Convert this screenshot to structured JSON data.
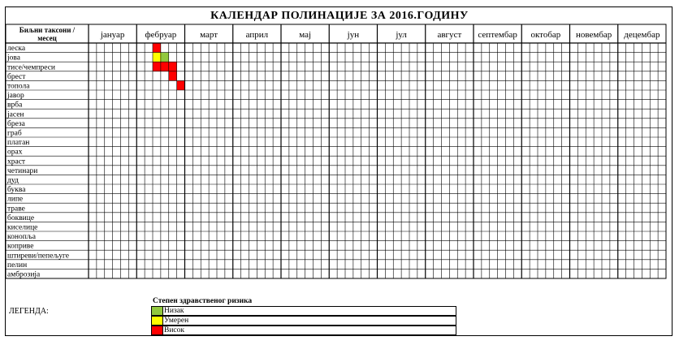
{
  "chart_data": {
    "type": "heatmap",
    "title": "КАЛЕНДАР ПОЛИНАЦИЈЕ ЗА  2016.ГОДИНУ",
    "corner_header": [
      "Биљни таксони /",
      "месец"
    ],
    "months": [
      "јануар",
      "фебруар",
      "март",
      "април",
      "мај",
      "јун",
      "јул",
      "август",
      "септембар",
      "октобар",
      "новембар",
      "децембар"
    ],
    "rows": [
      {
        "taxon": "леска",
        "cells": "00000000300000000000000000000000000000000000000000000000000000000000000"
      },
      {
        "taxon": "јова",
        "cells": "00000000210000000000000000000000000000000000000000000000000000000000000"
      },
      {
        "taxon": "тисе/чемпреси",
        "cells": "00000000333000000000000000000000000000000000000000000000000000000000000"
      },
      {
        "taxon": "брест",
        "cells": "00000000003000000000000000000000000000000000000000000000000000000000000"
      },
      {
        "taxon": "топола",
        "cells": "00000000000300000000000000000000000000000000000000000000000000000000000"
      },
      {
        "taxon": "јавор",
        "cells": "00000000000000000000000000000000000000000000000000000000000000000000000"
      },
      {
        "taxon": "врба",
        "cells": "00000000000000000000000000000000000000000000000000000000000000000000000"
      },
      {
        "taxon": "јасен",
        "cells": "00000000000000000000000000000000000000000000000000000000000000000000000"
      },
      {
        "taxon": "бреза",
        "cells": "00000000000000000000000000000000000000000000000000000000000000000000000"
      },
      {
        "taxon": "граб",
        "cells": "00000000000000000000000000000000000000000000000000000000000000000000000"
      },
      {
        "taxon": "платан",
        "cells": "00000000000000000000000000000000000000000000000000000000000000000000000"
      },
      {
        "taxon": "орах",
        "cells": "00000000000000000000000000000000000000000000000000000000000000000000000"
      },
      {
        "taxon": "храст",
        "cells": "00000000000000000000000000000000000000000000000000000000000000000000000"
      },
      {
        "taxon": "четинари",
        "cells": "00000000000000000000000000000000000000000000000000000000000000000000000"
      },
      {
        "taxon": "дуд",
        "cells": "00000000000000000000000000000000000000000000000000000000000000000000000"
      },
      {
        "taxon": "буква",
        "cells": "00000000000000000000000000000000000000000000000000000000000000000000000"
      },
      {
        "taxon": "липе",
        "cells": "00000000000000000000000000000000000000000000000000000000000000000000000"
      },
      {
        "taxon": "траве",
        "cells": "00000000000000000000000000000000000000000000000000000000000000000000000"
      },
      {
        "taxon": "боквице",
        "cells": "00000000000000000000000000000000000000000000000000000000000000000000000"
      },
      {
        "taxon": "киселице",
        "cells": "00000000000000000000000000000000000000000000000000000000000000000000000"
      },
      {
        "taxon": "конопља",
        "cells": "00000000000000000000000000000000000000000000000000000000000000000000000"
      },
      {
        "taxon": "коприве",
        "cells": "00000000000000000000000000000000000000000000000000000000000000000000000"
      },
      {
        "taxon": "штиреви/пепељуге",
        "cells": "00000000000000000000000000000000000000000000000000000000000000000000000"
      },
      {
        "taxon": "пелин",
        "cells": "00000000000000000000000000000000000000000000000000000000000000000000000"
      },
      {
        "taxon": "амброзија",
        "cells": "00000000000000000000000000000000000000000000000000000000000000000000000"
      }
    ],
    "legend": {
      "heading": "Степен здравственог ризика",
      "label": "ЛЕГЕНДА:",
      "items": [
        {
          "level": 1,
          "label": "Низак",
          "color": "#92c83e"
        },
        {
          "level": 2,
          "label": "Умерен",
          "color": "#ffff00"
        },
        {
          "level": 3,
          "label": "Висок",
          "color": "#ff0000"
        }
      ]
    }
  }
}
